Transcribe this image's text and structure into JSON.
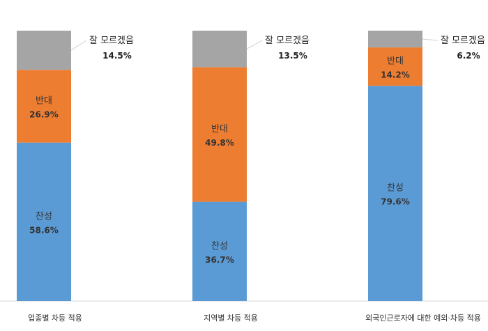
{
  "chart_data": {
    "type": "bar",
    "stacked": true,
    "percent": true,
    "categories": [
      "업종별 차등 적용",
      "지역별 차등 적용",
      "외국인근로자에 대한 예외·차등 적용"
    ],
    "series": [
      {
        "name": "찬성",
        "values": [
          58.6,
          36.7,
          79.6
        ],
        "color": "#5b9bd5"
      },
      {
        "name": "반대",
        "values": [
          26.9,
          49.8,
          14.2
        ],
        "color": "#ed7d31"
      },
      {
        "name": "잘 모르겠음",
        "values": [
          14.5,
          13.5,
          6.2
        ],
        "color": "#a5a5a5"
      }
    ],
    "value_labels": [
      [
        "58.6%",
        "26.9%",
        "14.5%"
      ],
      [
        "36.7%",
        "49.8%",
        "13.5%"
      ],
      [
        "79.6%",
        "14.2%",
        "6.2%"
      ]
    ],
    "ylim": [
      0,
      100
    ],
    "grid": false,
    "legend": "none"
  }
}
